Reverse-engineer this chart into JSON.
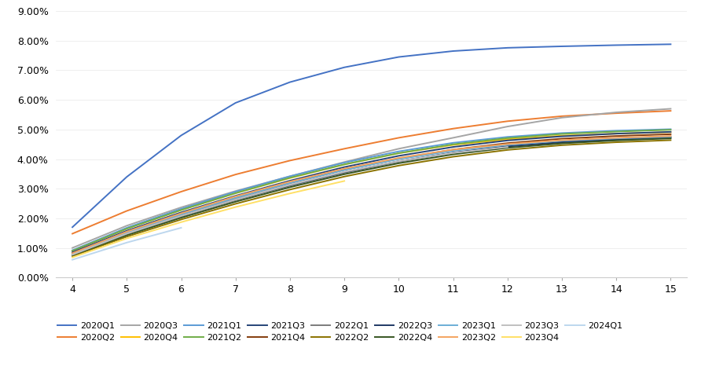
{
  "x_values": [
    4,
    5,
    6,
    7,
    8,
    9,
    10,
    11,
    12,
    13,
    14,
    15
  ],
  "series": [
    {
      "label": "2020Q1",
      "color": "#4472C4",
      "values": [
        0.017,
        0.034,
        0.048,
        0.059,
        0.066,
        0.071,
        0.0745,
        0.0765,
        0.0776,
        0.0781,
        0.0785,
        0.0788
      ]
    },
    {
      "label": "2020Q2",
      "color": "#ED7D31",
      "values": [
        0.0148,
        0.0225,
        0.029,
        0.0348,
        0.0395,
        0.0435,
        0.0472,
        0.0503,
        0.0528,
        0.0545,
        0.0555,
        0.0563
      ]
    },
    {
      "label": "2020Q3",
      "color": "#A5A5A5",
      "values": [
        0.01,
        0.0175,
        0.0237,
        0.0292,
        0.0342,
        0.039,
        0.0435,
        0.0472,
        0.051,
        0.054,
        0.0558,
        0.057
      ]
    },
    {
      "label": "2020Q4",
      "color": "#FFC000",
      "values": [
        0.009,
        0.0165,
        0.0228,
        0.0285,
        0.0336,
        0.0382,
        0.042,
        0.0448,
        0.0467,
        0.0479,
        0.0486,
        0.0491
      ]
    },
    {
      "label": "2021Q1",
      "color": "#5B9BD5",
      "values": [
        0.0092,
        0.0168,
        0.0232,
        0.029,
        0.0342,
        0.0388,
        0.0426,
        0.0455,
        0.0475,
        0.0488,
        0.0496,
        0.0501
      ]
    },
    {
      "label": "2021Q2",
      "color": "#70AD47",
      "values": [
        0.009,
        0.0165,
        0.0228,
        0.0285,
        0.0337,
        0.0382,
        0.042,
        0.045,
        0.0471,
        0.0485,
        0.0493,
        0.0499
      ]
    },
    {
      "label": "2021Q3",
      "color": "#264478",
      "values": [
        0.0085,
        0.0158,
        0.022,
        0.0276,
        0.0327,
        0.0373,
        0.0411,
        0.0441,
        0.0463,
        0.0477,
        0.0486,
        0.0492
      ]
    },
    {
      "label": "2021Q4",
      "color": "#843C0C",
      "values": [
        0.0082,
        0.0152,
        0.0213,
        0.0269,
        0.0319,
        0.0364,
        0.0402,
        0.0432,
        0.0454,
        0.0469,
        0.0478,
        0.0484
      ]
    },
    {
      "label": "2022Q1",
      "color": "#7B7B7B",
      "values": [
        0.0078,
        0.0147,
        0.0206,
        0.0261,
        0.031,
        0.0354,
        0.0391,
        0.0421,
        0.0443,
        0.0458,
        0.0468,
        0.0474
      ]
    },
    {
      "label": "2022Q2",
      "color": "#8B7300",
      "values": [
        0.0072,
        0.0138,
        0.0196,
        0.0249,
        0.0297,
        0.0341,
        0.0378,
        0.0408,
        0.0431,
        0.0447,
        0.0457,
        0.0464
      ]
    },
    {
      "label": "2022Q3",
      "color": "#1F3864",
      "values": [
        0.0078,
        0.0148,
        0.0208,
        0.0263,
        0.0312,
        0.0356,
        0.0393,
        0.0422,
        0.0443,
        0.0457,
        0.0466,
        0.0472
      ]
    },
    {
      "label": "2022Q4",
      "color": "#375623",
      "values": [
        0.0075,
        0.0143,
        0.0202,
        0.0256,
        0.0305,
        0.0349,
        0.0386,
        0.0416,
        0.0438,
        0.0453,
        0.0463,
        0.047
      ]
    },
    {
      "label": "2023Q1",
      "color": "#6BAED6",
      "values": [
        0.008,
        0.0152,
        0.0213,
        0.0269,
        0.0319,
        0.0363,
        0.04,
        0.0428,
        0.0448,
        0.0462,
        0.047,
        0.0476
      ]
    },
    {
      "label": "2023Q2",
      "color": "#F4A460",
      "values": [
        0.0082,
        0.0155,
        0.0217,
        0.0274,
        0.0324,
        0.0368,
        0.0404,
        0.0432,
        0.0451,
        0.0464,
        0.0472,
        0.0478
      ]
    },
    {
      "label": "2023Q3",
      "color": "#C0C0C0",
      "values": [
        0.0077,
        0.0148,
        0.0208,
        0.0263,
        0.0313,
        0.0357,
        0.0393,
        0.0421,
        0.0441,
        null,
        null,
        null
      ]
    },
    {
      "label": "2023Q4",
      "color": "#FFE066",
      "values": [
        0.0068,
        0.0132,
        0.0187,
        0.0238,
        0.0284,
        0.0326,
        null,
        null,
        null,
        null,
        null,
        null
      ]
    },
    {
      "label": "2024Q1",
      "color": "#BDD7EE",
      "values": [
        0.006,
        0.0118,
        0.0168,
        null,
        null,
        null,
        null,
        null,
        null,
        null,
        null,
        null
      ]
    }
  ],
  "ylim": [
    0,
    0.09
  ],
  "yticks": [
    0.0,
    0.01,
    0.02,
    0.03,
    0.04,
    0.05,
    0.06,
    0.07,
    0.08,
    0.09
  ],
  "xlim": [
    4,
    15
  ],
  "xticks": [
    4,
    5,
    6,
    7,
    8,
    9,
    10,
    11,
    12,
    13,
    14,
    15
  ],
  "background_color": "#FFFFFF",
  "legend_row1": [
    "2020Q1",
    "2020Q2",
    "2020Q3",
    "2020Q4",
    "2021Q1",
    "2021Q2",
    "2021Q3",
    "2021Q4",
    "2022Q1"
  ],
  "legend_row2": [
    "2022Q2",
    "2022Q3",
    "2022Q4",
    "2023Q1",
    "2023Q2",
    "2023Q3",
    "2023Q4",
    "2024Q1"
  ]
}
